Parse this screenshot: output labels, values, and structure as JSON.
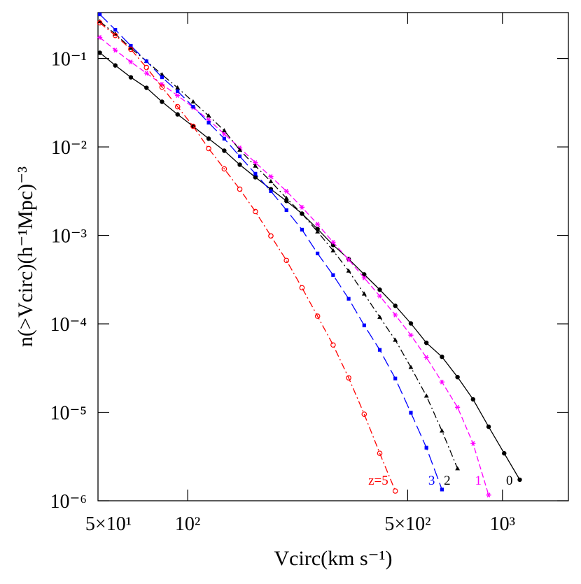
{
  "chart_data": {
    "type": "line",
    "x_label": "Vcirc(km s⁻¹)",
    "y_label": "n(>Vcirc)(h⁻¹Mpc)⁻³",
    "log_x": true,
    "log_y": true,
    "xlim": [
      51.9,
      1620
    ],
    "ylim": [
      1e-06,
      0.33
    ],
    "xticks": [
      {
        "value": 50,
        "label": "5×10¹"
      },
      {
        "value": 100,
        "label": "10²"
      },
      {
        "value": 500,
        "label": "5×10²"
      },
      {
        "value": 1000,
        "label": "10³"
      }
    ],
    "yticks": [
      {
        "value": 1e-06,
        "label": "10⁻⁶"
      },
      {
        "value": 1e-05,
        "label": "10⁻⁵"
      },
      {
        "value": 0.0001,
        "label": "10⁻⁴"
      },
      {
        "value": 0.001,
        "label": "10⁻³"
      },
      {
        "value": 0.01,
        "label": "10⁻²"
      },
      {
        "value": 0.1,
        "label": "10⁻¹"
      }
    ],
    "series": [
      {
        "name": "0",
        "color": "#000000",
        "linestyle": "solid",
        "marker": "filled-circle",
        "x": [
          52.6,
          58.9,
          66.0,
          74.0,
          82.9,
          92.9,
          104.1,
          116.6,
          130.7,
          146.4,
          164.1,
          183.8,
          206.0,
          230.8,
          258.6,
          289.8,
          324.7,
          363.8,
          407.6,
          456.7,
          511.8,
          573.4,
          642.5,
          720.0,
          806.7,
          903.9,
          1012.8,
          1134.9
        ],
        "values": [
          0.116,
          0.0834,
          0.0612,
          0.0466,
          0.0324,
          0.0233,
          0.0171,
          0.0124,
          0.00906,
          0.0063,
          0.00454,
          0.00333,
          0.00245,
          0.00176,
          0.00118,
          0.000778,
          0.000541,
          0.000362,
          0.000243,
          0.00016,
          0.000101,
          6.1e-05,
          4.24e-05,
          2.5e-05,
          1.4e-05,
          6.87e-06,
          3.44e-06,
          1.73e-06
        ]
      },
      {
        "name": "1",
        "color": "#ff00ff",
        "linestyle": "dashed",
        "marker": "star",
        "x": [
          52.6,
          58.9,
          66.0,
          74.0,
          82.9,
          92.9,
          104.1,
          116.6,
          130.7,
          146.4,
          164.1,
          183.8,
          206.0,
          230.8,
          258.6,
          289.8,
          324.7,
          363.8,
          407.6,
          456.7,
          511.8,
          573.4,
          642.5,
          720.0,
          806.7,
          903.9
        ],
        "values": [
          0.173,
          0.124,
          0.0913,
          0.0682,
          0.051,
          0.0381,
          0.028,
          0.0202,
          0.014,
          0.00975,
          0.00665,
          0.00462,
          0.00316,
          0.00208,
          0.00134,
          0.000837,
          0.000531,
          0.000331,
          0.000206,
          0.000126,
          7.45e-05,
          4.16e-05,
          2.2e-05,
          1.14e-05,
          4.44e-06,
          1.16e-06
        ]
      },
      {
        "name": "2",
        "color": "#000000",
        "linestyle": "dashdot",
        "marker": "triangle",
        "x": [
          52.6,
          58.9,
          66.0,
          74.0,
          82.9,
          92.9,
          104.1,
          116.6,
          130.7,
          146.4,
          164.1,
          183.8,
          206.0,
          230.8,
          258.6,
          289.8,
          324.7,
          363.8,
          407.6,
          456.7,
          511.8,
          573.4,
          642.5,
          720.0
        ],
        "values": [
          0.262,
          0.189,
          0.131,
          0.093,
          0.0658,
          0.0466,
          0.0324,
          0.0225,
          0.0153,
          0.00923,
          0.00608,
          0.00407,
          0.00263,
          0.00176,
          0.0011,
          0.000673,
          0.000397,
          0.000218,
          0.000119,
          6.56e-05,
          3.23e-05,
          1.53e-05,
          6.17e-06,
          2.31e-06
        ]
      },
      {
        "name": "3",
        "color": "#0000ff",
        "linestyle": "longdash",
        "marker": "filled-square",
        "x": [
          52.6,
          58.9,
          66.0,
          74.0,
          82.9,
          92.9,
          104.1,
          116.6,
          130.7,
          146.4,
          164.1,
          183.8,
          206.0,
          230.8,
          258.6,
          289.8,
          324.7,
          363.8,
          407.6,
          456.7,
          511.8,
          573.4,
          642.5
        ],
        "values": [
          0.315,
          0.211,
          0.139,
          0.093,
          0.0612,
          0.0426,
          0.0285,
          0.0188,
          0.0124,
          0.00783,
          0.00498,
          0.00316,
          0.00193,
          0.00116,
          0.000625,
          0.000356,
          0.000192,
          9.62e-05,
          5.08e-05,
          2.41e-05,
          9.89e-06,
          3.98e-06,
          1.34e-06
        ]
      },
      {
        "name": "z=5",
        "color": "#ff0000",
        "linestyle": "dashdot",
        "marker": "open-circle",
        "x": [
          52.6,
          58.9,
          66.0,
          74.0,
          82.9,
          92.9,
          104.1,
          116.6,
          130.7,
          146.4,
          164.1,
          183.8,
          206.0,
          230.8,
          258.6,
          289.8,
          324.7,
          363.8,
          407.6,
          456.7
        ],
        "values": [
          0.253,
          0.182,
          0.127,
          0.0789,
          0.0474,
          0.0285,
          0.0171,
          0.00957,
          0.00565,
          0.00333,
          0.00186,
          0.000986,
          0.000521,
          0.000256,
          0.000122,
          5.77e-05,
          2.45e-05,
          9.53e-06,
          3.44e-06,
          1.29e-06
        ]
      }
    ]
  }
}
